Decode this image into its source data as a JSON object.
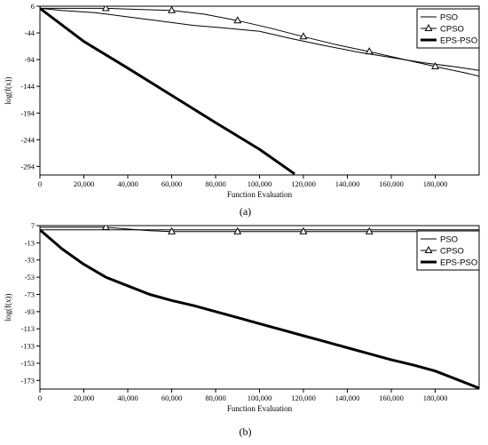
{
  "chart_data": [
    {
      "type": "line",
      "caption": "(a)",
      "xlabel": "Function Evaluation",
      "ylabel": "log(f(x))",
      "xlim": [
        0,
        200000
      ],
      "ylim": [
        -310,
        6
      ],
      "x_ticks": [
        0,
        20000,
        40000,
        60000,
        80000,
        100000,
        120000,
        140000,
        160000,
        180000
      ],
      "x_tick_labels": [
        "0",
        "20,000",
        "40,000",
        "60,000",
        "80,000",
        "100,000",
        "120,000",
        "140,000",
        "160,000",
        "180,000"
      ],
      "y_ticks": [
        6,
        -44,
        -94,
        -144,
        -194,
        -244,
        -294
      ],
      "y_tick_labels": [
        "6",
        "-44",
        "-94",
        "-144",
        "-194",
        "-244",
        "-294"
      ],
      "legend_position": "top-right",
      "series": [
        {
          "name": "PSO",
          "style": "thin",
          "x": [
            0,
            10000,
            25000,
            40000,
            55000,
            70000,
            85000,
            100000,
            115000,
            130000,
            145000,
            160000,
            175000,
            190000,
            200000
          ],
          "y": [
            2,
            -2,
            -6,
            -14,
            -22,
            -30,
            -35,
            -41,
            -55,
            -68,
            -80,
            -90,
            -100,
            -108,
            -114
          ]
        },
        {
          "name": "CPSO",
          "style": "triangle",
          "x": [
            0,
            20000,
            30000,
            45000,
            60000,
            75000,
            90000,
            105000,
            120000,
            135000,
            150000,
            165000,
            180000,
            195000,
            200000
          ],
          "y": [
            2,
            2,
            2,
            0,
            -2,
            -9,
            -21,
            -35,
            -51,
            -66,
            -79,
            -93,
            -107,
            -120,
            -125
          ],
          "marker_x": [
            30000,
            60000,
            90000,
            120000,
            150000,
            180000
          ]
        },
        {
          "name": "EPS-PSO",
          "style": "thick",
          "x": [
            0,
            20000,
            40000,
            60000,
            80000,
            100000,
            116000
          ],
          "y": [
            2,
            -60,
            -110,
            -161,
            -212,
            -262,
            -308
          ]
        }
      ]
    },
    {
      "type": "line",
      "caption": "(b)",
      "xlabel": "Function Evaluation",
      "ylabel": "log(f(x))",
      "xlim": [
        0,
        200000
      ],
      "ylim": [
        -183,
        7
      ],
      "x_ticks": [
        0,
        20000,
        40000,
        60000,
        80000,
        100000,
        120000,
        140000,
        160000,
        180000
      ],
      "x_tick_labels": [
        "0",
        "20,000",
        "40,000",
        "60,000",
        "80,000",
        "100,000",
        "120,000",
        "140,000",
        "160,000",
        "180,000"
      ],
      "y_ticks": [
        7,
        -13,
        -33,
        -53,
        -73,
        -93,
        -113,
        -133,
        -153,
        -173
      ],
      "y_tick_labels": [
        "7",
        "-13",
        "-33",
        "-53",
        "-73",
        "-93",
        "-113",
        "-133",
        "-153",
        "-173"
      ],
      "legend_position": "top-right",
      "series": [
        {
          "name": "PSO",
          "style": "thin",
          "x": [
            0,
            200000
          ],
          "y": [
            2,
            2
          ]
        },
        {
          "name": "CPSO",
          "style": "triangle",
          "x": [
            0,
            30000,
            40000,
            50000,
            60000,
            200000
          ],
          "y": [
            5,
            5,
            3,
            1,
            0,
            0
          ],
          "marker_x": [
            30000,
            60000,
            90000,
            120000,
            150000
          ]
        },
        {
          "name": "EPS-PSO",
          "style": "thick",
          "x": [
            0,
            10000,
            20000,
            30000,
            40000,
            50000,
            60000,
            70000,
            80000,
            90000,
            100000,
            110000,
            120000,
            130000,
            140000,
            150000,
            160000,
            170000,
            180000,
            190000,
            200000
          ],
          "y": [
            2,
            -20,
            -38,
            -53,
            -63,
            -73,
            -80,
            -86,
            -93,
            -100,
            -107,
            -114,
            -121,
            -128,
            -135,
            -142,
            -149,
            -155,
            -162,
            -172,
            -182
          ]
        }
      ]
    }
  ]
}
